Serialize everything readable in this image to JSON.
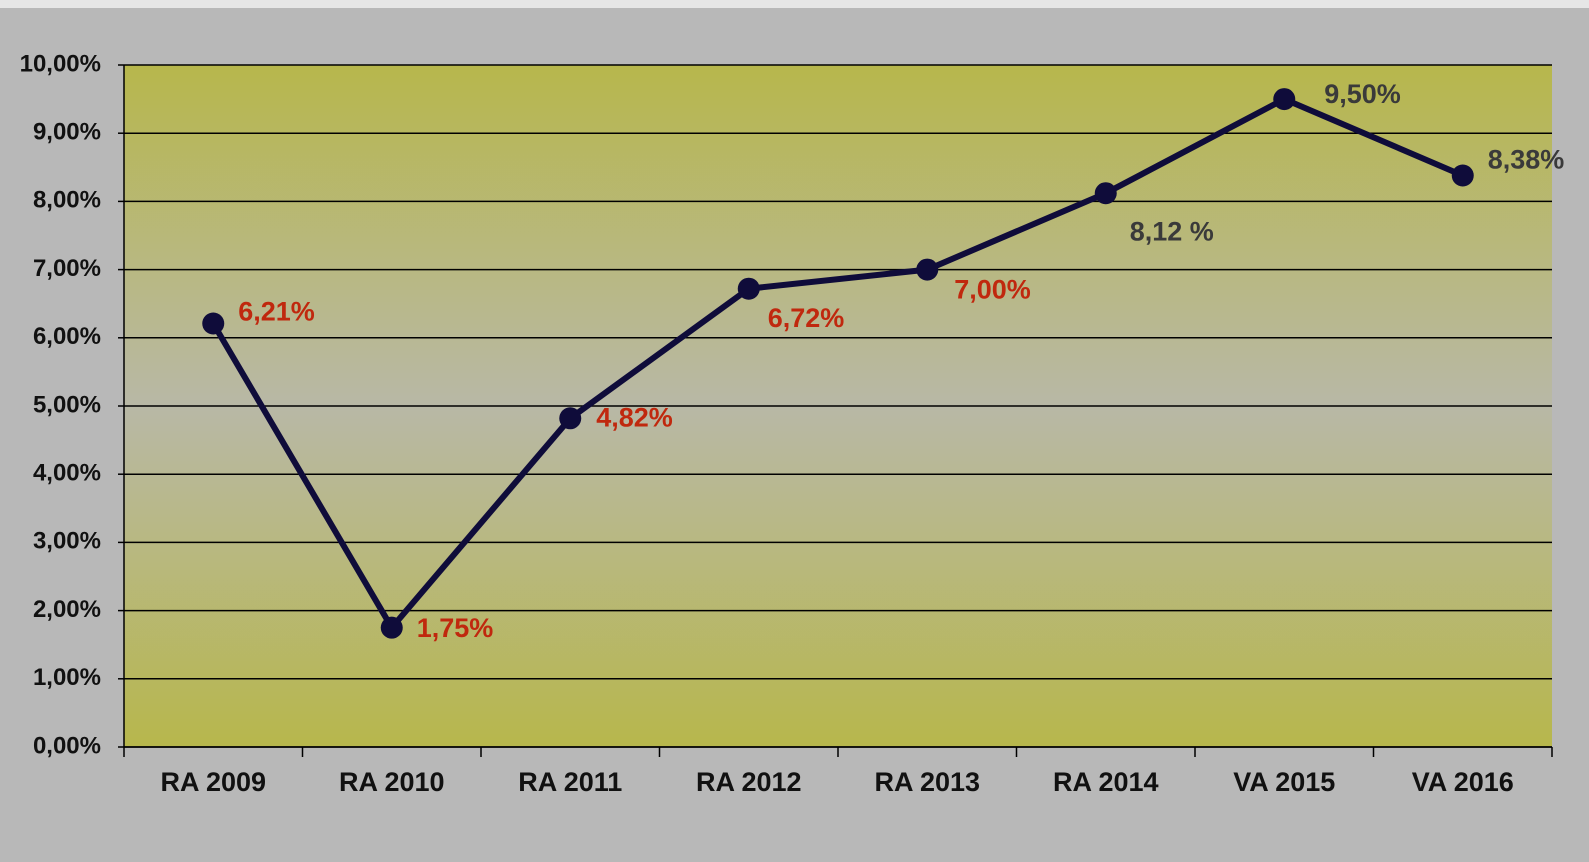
{
  "chart_data": {
    "type": "line",
    "categories": [
      "RA 2009",
      "RA 2010",
      "RA 2011",
      "RA 2012",
      "RA 2013",
      "RA 2014",
      "VA 2015",
      "VA 2016"
    ],
    "series": [
      {
        "color": "#0f0c3a",
        "values": [
          6.21,
          1.75,
          4.82,
          6.72,
          7.0,
          8.12,
          9.5,
          8.38
        ],
        "value_labels": [
          "6,21%",
          "1,75%",
          "4,82%",
          "6,72%",
          "7,00%",
          "8,12 %",
          "9,50%",
          "8,38%"
        ],
        "value_label_colors": [
          "#c0280e",
          "#c0280e",
          "#c0280e",
          "#c0280e",
          "#c0280e",
          "#3a3a3a",
          "#3a3a3a",
          "#3a3a3a"
        ]
      }
    ],
    "ylim": [
      0,
      10
    ],
    "yticks": [
      {
        "value": 0,
        "label": "0,00%"
      },
      {
        "value": 1,
        "label": "1,00%"
      },
      {
        "value": 2,
        "label": "2,00%"
      },
      {
        "value": 3,
        "label": "3,00%"
      },
      {
        "value": 4,
        "label": "4,00%"
      },
      {
        "value": 5,
        "label": "5,00%"
      },
      {
        "value": 6,
        "label": "6,00%"
      },
      {
        "value": 7,
        "label": "7,00%"
      },
      {
        "value": 8,
        "label": "8,00%"
      },
      {
        "value": 9,
        "label": "9,00%"
      },
      {
        "value": 10,
        "label": "10,00%"
      }
    ],
    "grid": true
  }
}
